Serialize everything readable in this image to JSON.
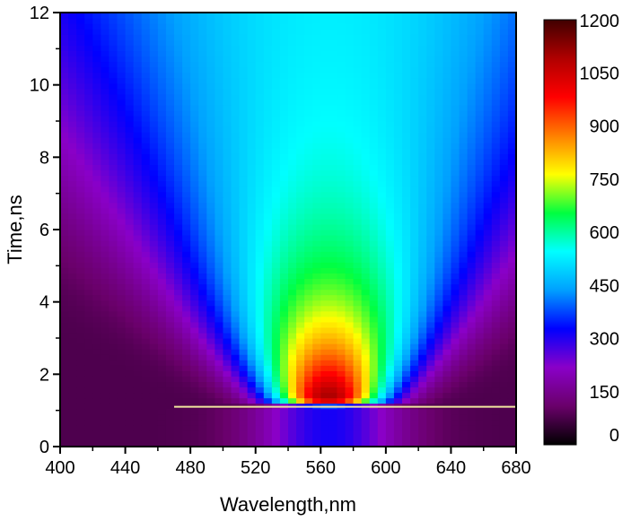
{
  "chart_data": {
    "type": "heatmap",
    "xlabel": "Wavelength,nm",
    "ylabel": "Time,ns",
    "xlim": [
      400,
      680
    ],
    "ylim": [
      0,
      12
    ],
    "x_ticks": [
      400,
      440,
      480,
      520,
      560,
      600,
      640,
      680
    ],
    "y_ticks": [
      0,
      2,
      4,
      6,
      8,
      10,
      12
    ],
    "colorbar": {
      "range": [
        0,
        1200
      ],
      "ticks": [
        0,
        150,
        300,
        450,
        600,
        750,
        900,
        1050,
        1200
      ],
      "colors": [
        "#000000",
        "#6a006a",
        "#8a00c8",
        "#0000ff",
        "#00a0ff",
        "#00ffff",
        "#00ff40",
        "#ffff00",
        "#ff8000",
        "#ff0000",
        "#b00000",
        "#400000"
      ]
    },
    "excitation_time_ns": 1.1,
    "peak": {
      "wavelength_nm": 560,
      "time_ns": 1.3,
      "intensity": 1200
    },
    "background_intensity": 80
  }
}
